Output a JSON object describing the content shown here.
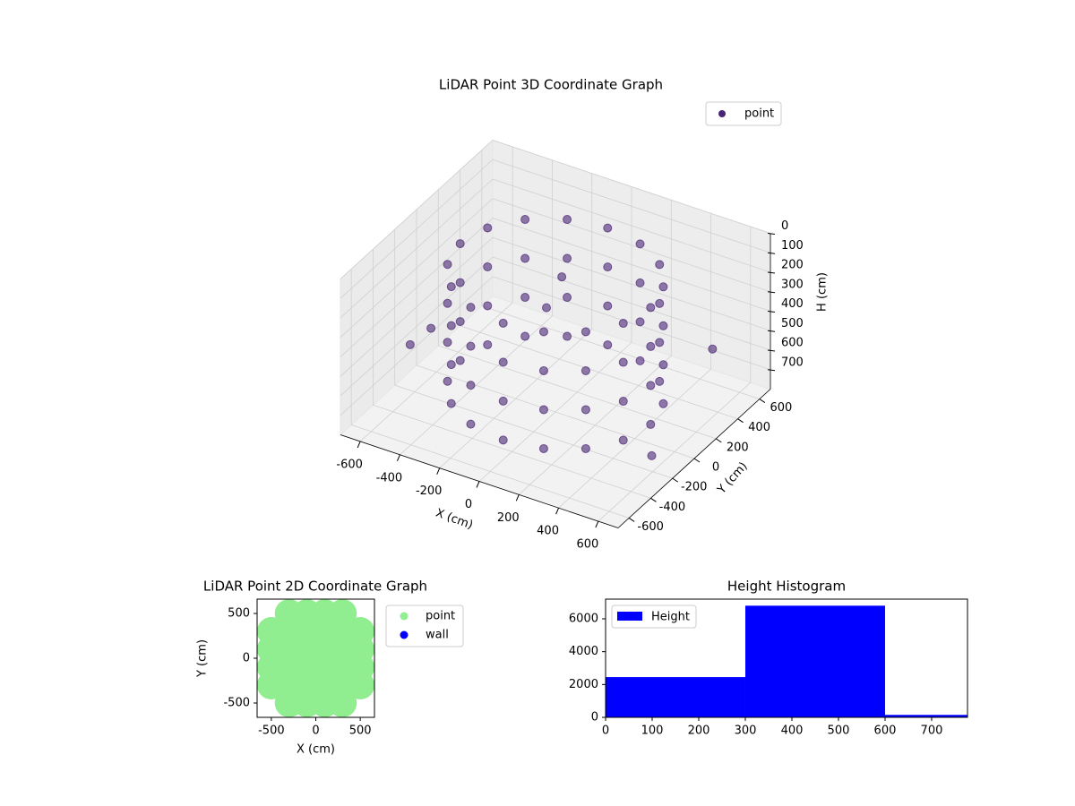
{
  "chart_data": [
    {
      "type": "scatter3d",
      "title": "LiDAR Point 3D Coordinate Graph",
      "xlabel": "X (cm)",
      "ylabel": "Y (cm)",
      "zlabel": "H (cm)",
      "xlim": [
        -700,
        700
      ],
      "ylim": [
        -700,
        700
      ],
      "zlim": [
        0,
        800
      ],
      "zinverted": true,
      "xticks": [
        -600,
        -400,
        -200,
        0,
        200,
        400,
        600
      ],
      "yticks": [
        -600,
        -400,
        -200,
        0,
        200,
        400,
        600
      ],
      "zticks": [
        0,
        100,
        200,
        300,
        400,
        500,
        600,
        700
      ],
      "grid": true,
      "legend": "upper right",
      "series": [
        {
          "name": "point",
          "color": "#482475",
          "x": [
            480,
            480,
            480,
            480,
            443,
            443,
            443,
            443,
            339,
            339,
            339,
            339,
            184,
            184,
            184,
            184,
            0,
            0,
            0,
            0,
            -184,
            -184,
            -184,
            -184,
            -339,
            -339,
            -339,
            -339,
            -443,
            -443,
            -443,
            -443,
            -480,
            -480,
            -480,
            -480,
            -443,
            -443,
            -443,
            -443,
            -339,
            -339,
            -339,
            -339,
            -184,
            -184,
            -184,
            -184,
            0,
            0,
            0,
            0,
            184,
            184,
            184,
            184,
            339,
            339,
            339,
            339,
            443,
            443,
            443,
            443,
            -650,
            -600,
            600,
            650,
            -100,
            -50
          ],
          "y": [
            0,
            0,
            0,
            0,
            184,
            184,
            184,
            184,
            339,
            339,
            339,
            339,
            443,
            443,
            443,
            443,
            480,
            480,
            480,
            480,
            443,
            443,
            443,
            443,
            339,
            339,
            339,
            339,
            184,
            184,
            184,
            184,
            0,
            0,
            0,
            0,
            -184,
            -184,
            -184,
            -184,
            -339,
            -339,
            -339,
            -339,
            -443,
            -443,
            -443,
            -443,
            -480,
            -480,
            -480,
            -480,
            -443,
            -443,
            -443,
            -443,
            -339,
            -339,
            -339,
            -339,
            -184,
            -184,
            -184,
            -184,
            -150,
            -50,
            350,
            -300,
            100,
            150
          ],
          "z": [
            100,
            300,
            500,
            700,
            100,
            300,
            500,
            700,
            100,
            300,
            500,
            700,
            100,
            300,
            500,
            700,
            100,
            300,
            500,
            700,
            100,
            300,
            500,
            700,
            100,
            300,
            500,
            700,
            100,
            300,
            500,
            700,
            100,
            300,
            500,
            700,
            100,
            300,
            500,
            700,
            100,
            300,
            500,
            700,
            100,
            300,
            500,
            700,
            100,
            300,
            500,
            700,
            100,
            300,
            500,
            700,
            100,
            300,
            500,
            700,
            100,
            300,
            500,
            700,
            600,
            550,
            450,
            650,
            350,
            200
          ]
        }
      ]
    },
    {
      "type": "scatter",
      "title": "LiDAR Point 2D Coordinate Graph",
      "xlabel": "X (cm)",
      "ylabel": "Y (cm)",
      "xlim": [
        -660,
        660
      ],
      "ylim": [
        -660,
        660
      ],
      "xticks": [
        -500,
        0,
        500
      ],
      "yticks": [
        -500,
        0,
        500
      ],
      "legend": "outside right",
      "series": [
        {
          "name": "point",
          "color": "#90ee90",
          "x": [
            -300,
            -100,
            100,
            300,
            -500,
            -300,
            -100,
            100,
            300,
            500,
            -500,
            -300,
            -100,
            100,
            300,
            500,
            -500,
            -300,
            -100,
            100,
            300,
            500,
            -500,
            -300,
            -100,
            100,
            300,
            500,
            -300,
            -100,
            100,
            300
          ],
          "y": [
            -500,
            -500,
            -500,
            -500,
            -300,
            -300,
            -300,
            -300,
            -300,
            -300,
            -100,
            -100,
            -100,
            -100,
            -100,
            -100,
            100,
            100,
            100,
            100,
            100,
            100,
            300,
            300,
            300,
            300,
            300,
            300,
            500,
            500,
            500,
            500
          ]
        },
        {
          "name": "wall",
          "color": "#0000ff",
          "x": [],
          "y": []
        }
      ]
    },
    {
      "type": "histogram",
      "title": "Height Histogram",
      "bins": [
        0,
        300,
        600,
        777
      ],
      "xlim": [
        0,
        777
      ],
      "ylim": [
        0,
        7200
      ],
      "xticks": [
        0,
        100,
        200,
        300,
        400,
        500,
        600,
        700
      ],
      "yticks": [
        0,
        2000,
        4000,
        6000
      ],
      "legend": "upper left",
      "series": [
        {
          "name": "Height",
          "color": "#0000ff",
          "values": [
            2450,
            6800,
            150
          ]
        }
      ]
    }
  ]
}
